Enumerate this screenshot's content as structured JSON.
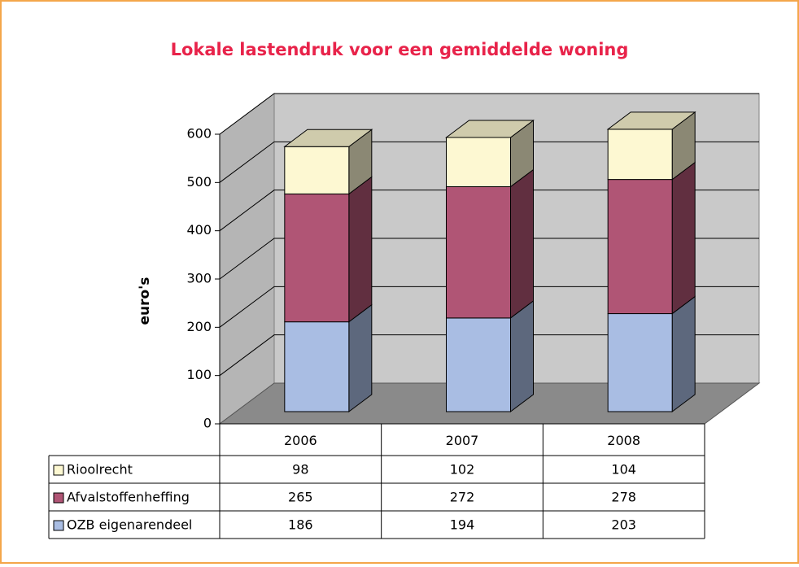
{
  "chart_data": {
    "type": "bar",
    "stacked": true,
    "three_d": true,
    "title": "Lokale lastendruk voor een gemiddelde woning",
    "y_label": "euro's",
    "categories": [
      "2006",
      "2007",
      "2008"
    ],
    "series": [
      {
        "name": "Rioolrecht",
        "color": "#fdf8d2",
        "values": [
          98,
          102,
          104
        ]
      },
      {
        "name": "Afvalstoffenheffing",
        "color": "#b05575",
        "values": [
          265,
          272,
          278
        ]
      },
      {
        "name": "OZB eigenarendeel",
        "color": "#a9bde3",
        "values": [
          186,
          194,
          203
        ]
      }
    ],
    "ylim": [
      0,
      600
    ],
    "yticks": [
      0,
      100,
      200,
      300,
      400,
      500,
      600
    ],
    "grid": true
  }
}
